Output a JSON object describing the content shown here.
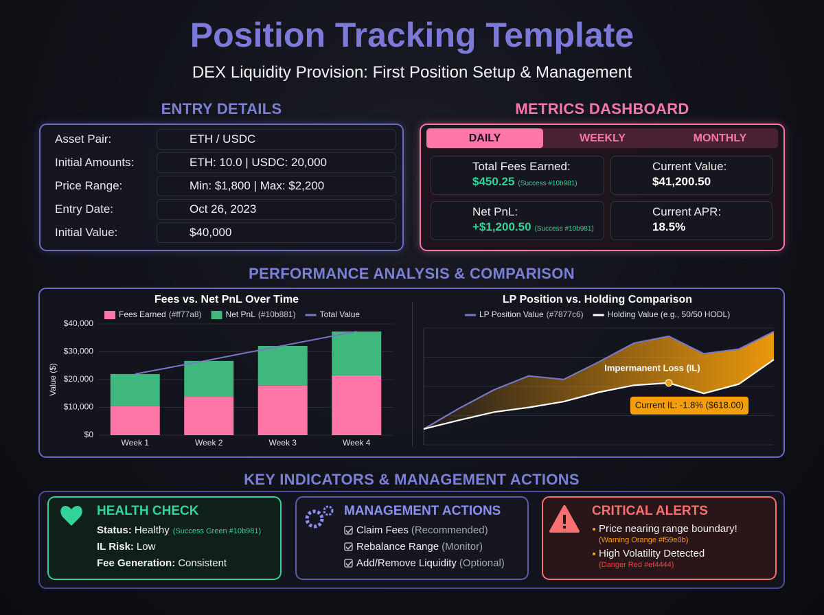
{
  "header": {
    "title": "Position Tracking Template",
    "subtitle": "DEX Liquidity Provision: First Position Setup & Management"
  },
  "entry_details": {
    "title": "ENTRY DETAILS",
    "rows": [
      [
        "Asset Pair:",
        "ETH / USDC"
      ],
      [
        "Initial Amounts:",
        "ETH: 10.0 | USDC: 20,000"
      ],
      [
        "Price Range:",
        "Min: $1,800 | Max: $2,200"
      ],
      [
        "Entry Date:",
        "Oct 26, 2023"
      ],
      [
        "Initial Value:",
        "$40,000"
      ]
    ]
  },
  "metrics": {
    "title": "METRICS DASHBOARD",
    "tabs": [
      "DAILY",
      "WEEKLY",
      "MONTHLY"
    ],
    "cards": [
      {
        "label": "Total Fees Earned:",
        "value": "$450.25",
        "note": "(Success #10b981)"
      },
      {
        "label": "Current Value:",
        "value": "$41,200.50"
      },
      {
        "label": "Net PnL:",
        "value": "+$1,200.50",
        "note": "(Success #10b981)"
      },
      {
        "label": "Current APR:",
        "value": "18.5%"
      }
    ]
  },
  "performance": {
    "title": "PERFORMANCE ANALYSIS & COMPARISON"
  },
  "chart_data": [
    {
      "type": "bar",
      "stacked": true,
      "title": "Fees vs. Net PnL Over Time",
      "y_label": "Value ($)",
      "categories": [
        "Week 1",
        "Week 2",
        "Week 3",
        "Week 4"
      ],
      "series": [
        {
          "name": "Fees Earned",
          "legend_note": "(#ff77a8)",
          "color": "#ff77a8",
          "values": [
            10400,
            13800,
            17800,
            21500
          ]
        },
        {
          "name": "Net PnL",
          "legend_note": "(#10b881)",
          "color": "#3fb77d",
          "values": [
            11600,
            12900,
            14300,
            15800
          ]
        },
        {
          "name": "Total Value",
          "type": "line",
          "color": "#7877c6",
          "values": [
            22000,
            27000,
            32200,
            37300
          ]
        }
      ],
      "ylim": [
        0,
        40000
      ],
      "yticks": [
        {
          "value": 0,
          "label": "$0"
        },
        {
          "value": 10000,
          "label": "$10,000"
        },
        {
          "value": 20000,
          "label": "$20,000"
        },
        {
          "value": 30000,
          "label": "$30,000"
        },
        {
          "value": 40000,
          "label": "$40,000"
        }
      ],
      "grid": true
    },
    {
      "type": "area",
      "title": "LP Position vs. Holding Comparison",
      "fill_between": true,
      "fill_color": "#f59e0b",
      "series": [
        {
          "name": "LP Position Value",
          "legend_note": "(#7877c6)",
          "color": "#7877c6",
          "values": [
            13.5,
            31,
            47,
            59,
            56,
            71,
            87,
            93,
            78,
            82,
            97
          ]
        },
        {
          "name": "Holding Value (e.g., 50/50 HODL)",
          "color": "#ffffff",
          "values": [
            13.5,
            21,
            28,
            32,
            37,
            45,
            51,
            53,
            44,
            52,
            73
          ]
        }
      ],
      "ylim": [
        0,
        100
      ],
      "yticks": [
        0,
        25,
        50,
        75,
        100
      ],
      "tick_labels": false,
      "grid": true,
      "annotations": [
        {
          "text": "Impermanent Loss (IL)"
        },
        {
          "text": "Current IL: -1.8% ($618.00)"
        }
      ]
    }
  ],
  "indicators": {
    "title": "KEY INDICATORS & MANAGEMENT ACTIONS",
    "health": {
      "title": "HEALTH CHECK",
      "items": [
        {
          "label": "Status:",
          "value": "Healthy",
          "note": "(Success Green #10b981)"
        },
        {
          "label": "IL Risk:",
          "value": "Low"
        },
        {
          "label": "Fee Generation:",
          "value": "Consistent"
        }
      ]
    },
    "actions": {
      "title": "MANAGEMENT ACTIONS",
      "items": [
        {
          "text": "Claim Fees",
          "note": "(Recommended)"
        },
        {
          "text": "Rebalance Range",
          "note": "(Monitor)"
        },
        {
          "text": "Add/Remove Liquidity",
          "note": "(Optional)"
        }
      ]
    },
    "alerts": {
      "title": "CRITICAL ALERTS",
      "items": [
        {
          "text": "Price nearing range boundary!",
          "note": "(Warning Orange #f59e0b)"
        },
        {
          "text": "High Volatility Detected",
          "note": "(Danger Red #ef4444)"
        }
      ]
    }
  }
}
